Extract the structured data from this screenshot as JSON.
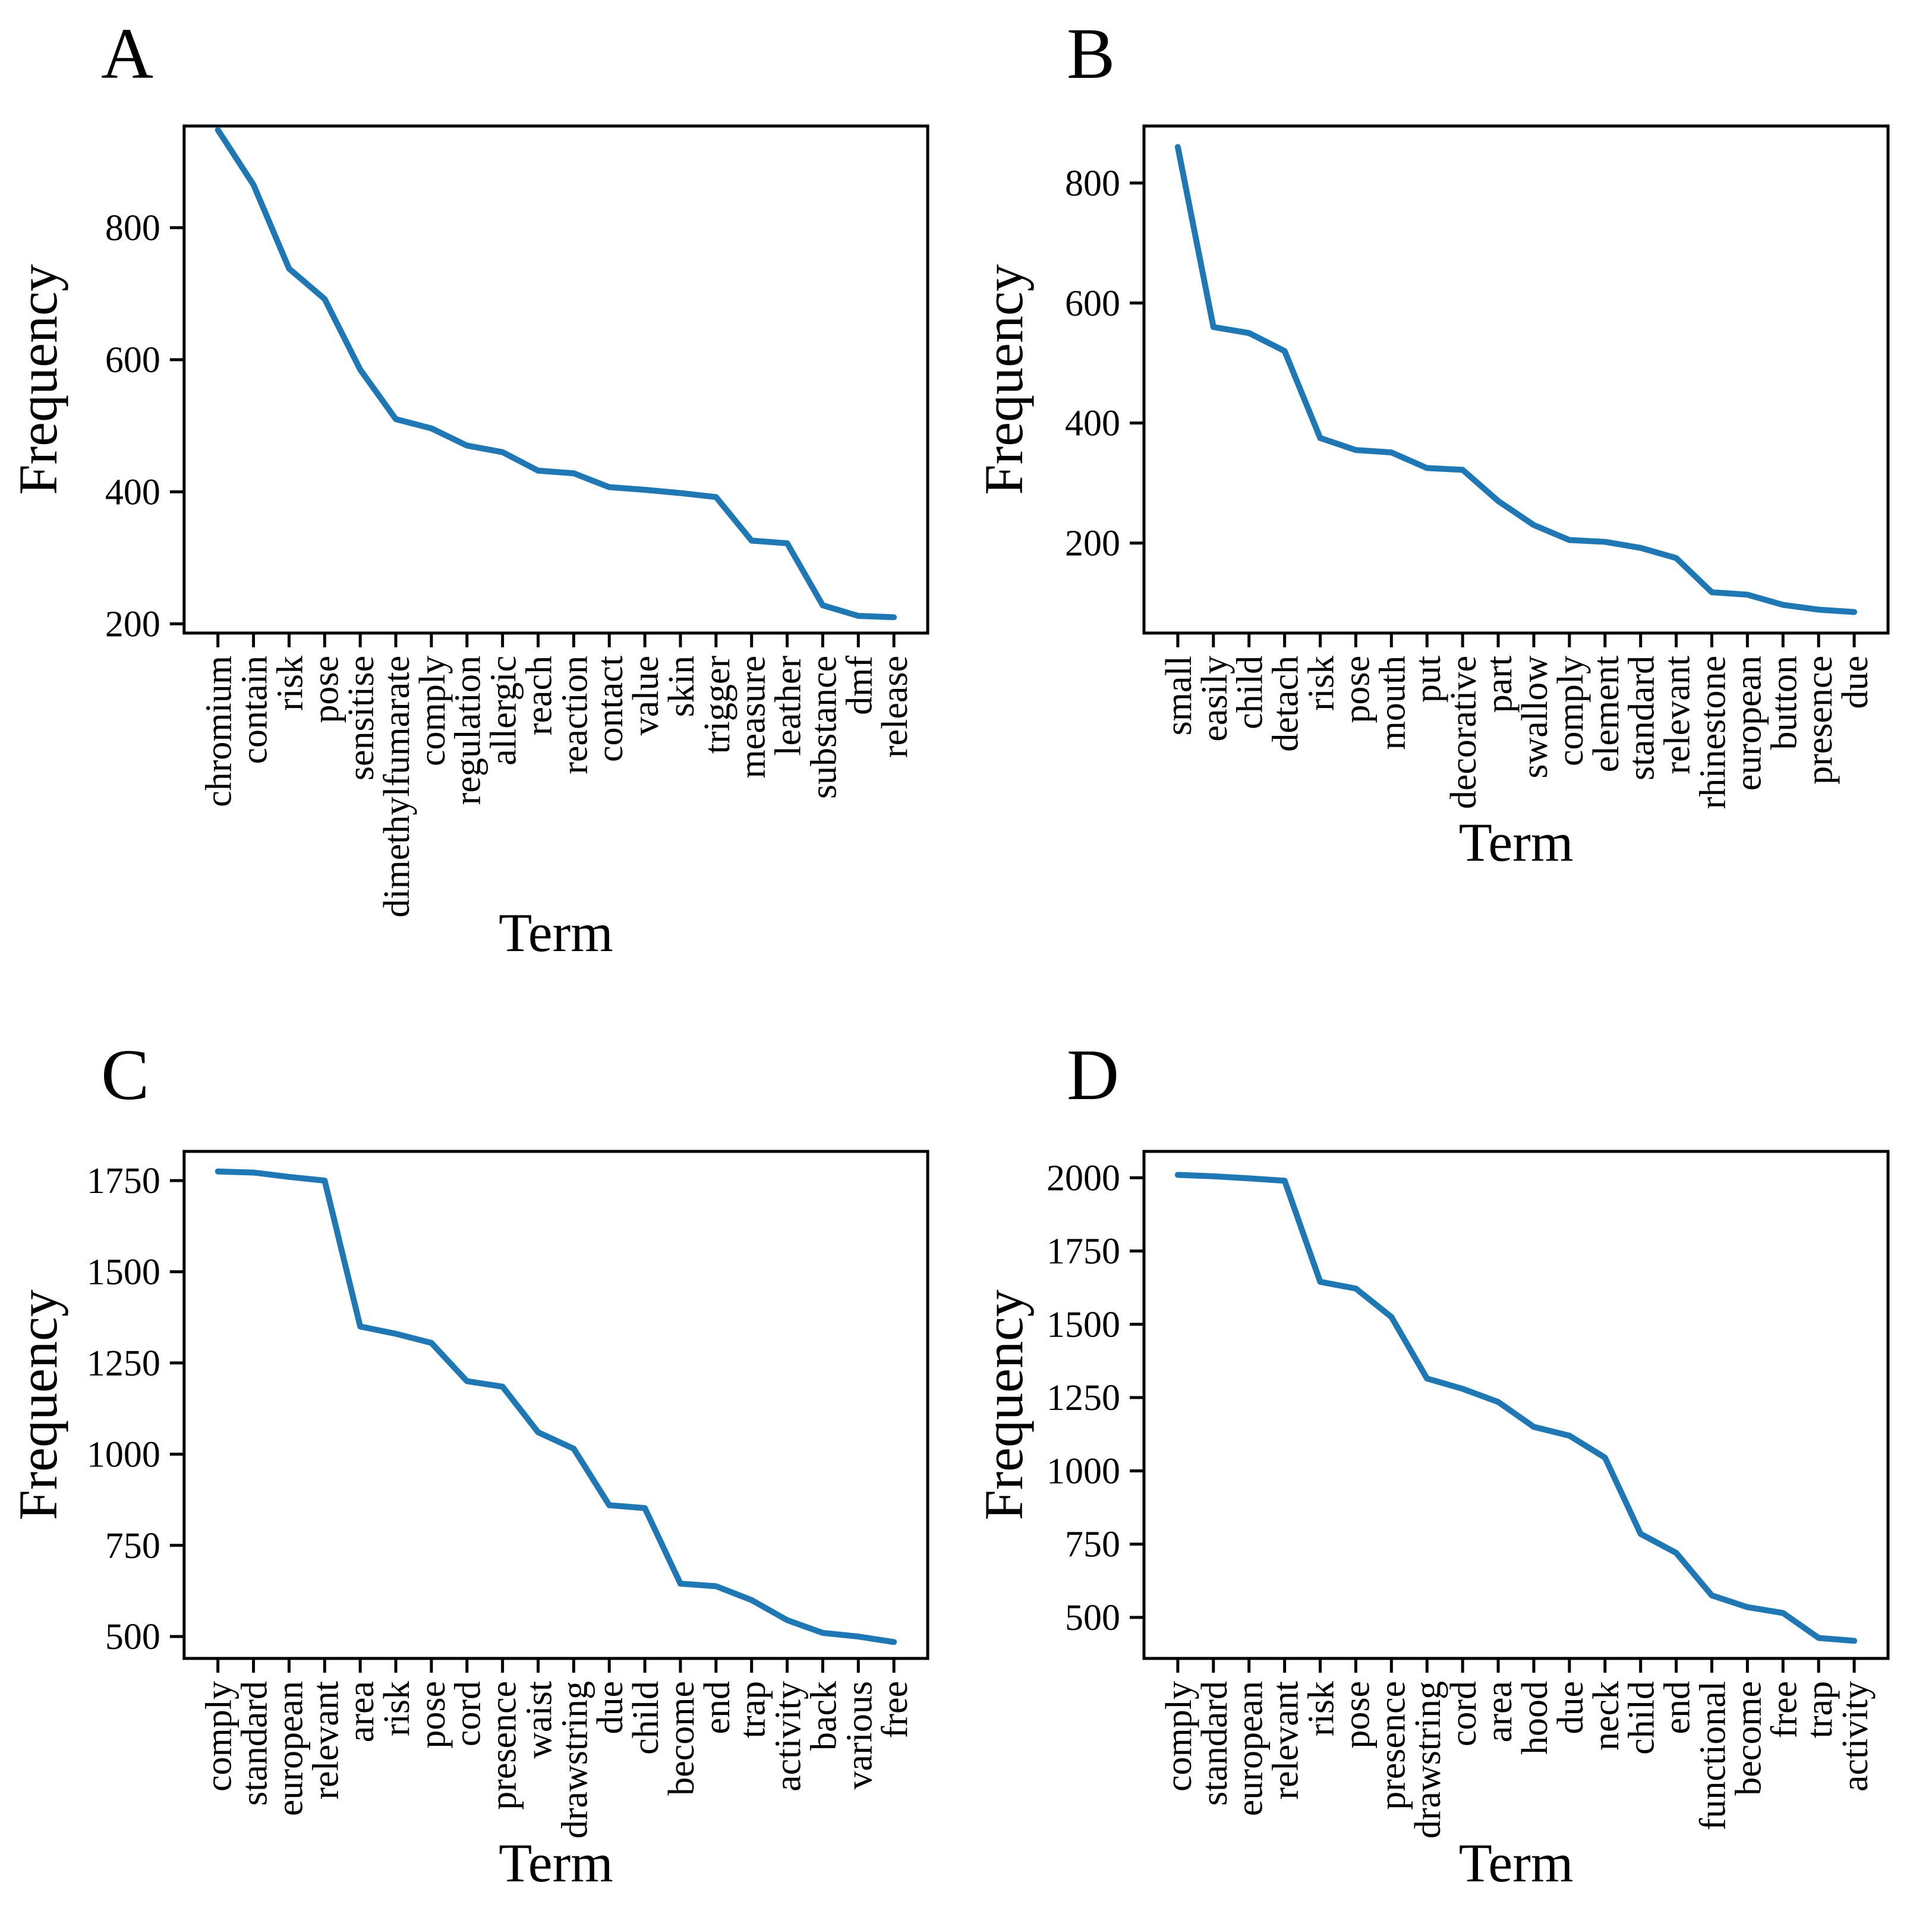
{
  "figure": {
    "background": "#ffffff",
    "axis_color": "#000000",
    "line_color": "#1f77b4"
  },
  "chart_data": [
    {
      "panel": "A",
      "title": "A",
      "type": "line",
      "xlabel": "Term",
      "ylabel": "Frequency",
      "categories": [
        "chromium",
        "contain",
        "risk",
        "pose",
        "sensitise",
        "dimethylfumarate",
        "comply",
        "regulation",
        "allergic",
        "reach",
        "reaction",
        "contact",
        "value",
        "skin",
        "trigger",
        "measure",
        "leather",
        "substance",
        "dmf",
        "release"
      ],
      "values": [
        948,
        865,
        738,
        692,
        585,
        510,
        496,
        470,
        460,
        432,
        428,
        407,
        403,
        398,
        392,
        326,
        322,
        228,
        212,
        210
      ],
      "yticks": [
        200,
        400,
        600,
        800
      ],
      "ylim": [
        186,
        954
      ],
      "grid": false,
      "legend": null
    },
    {
      "panel": "B",
      "title": "B",
      "type": "line",
      "xlabel": "Term",
      "ylabel": "Frequency",
      "categories": [
        "small",
        "easily",
        "child",
        "detach",
        "risk",
        "pose",
        "mouth",
        "put",
        "decorative",
        "part",
        "swallow",
        "comply",
        "element",
        "standard",
        "relevant",
        "rhinestone",
        "european",
        "button",
        "presence",
        "due"
      ],
      "values": [
        860,
        560,
        550,
        520,
        375,
        355,
        351,
        325,
        322,
        270,
        230,
        205,
        202,
        192,
        175,
        118,
        114,
        97,
        89,
        85
      ],
      "yticks": [
        200,
        400,
        600,
        800
      ],
      "ylim": [
        50,
        895
      ],
      "grid": false,
      "legend": null
    },
    {
      "panel": "C",
      "title": "C",
      "type": "line",
      "xlabel": "Term",
      "ylabel": "Frequency",
      "categories": [
        "comply",
        "standard",
        "european",
        "relevant",
        "area",
        "risk",
        "pose",
        "cord",
        "presence",
        "waist",
        "drawstring",
        "due",
        "child",
        "become",
        "end",
        "trap",
        "activity",
        "back",
        "various",
        "free"
      ],
      "values": [
        1775,
        1772,
        1760,
        1750,
        1350,
        1330,
        1305,
        1200,
        1185,
        1060,
        1015,
        860,
        852,
        645,
        638,
        600,
        545,
        510,
        500,
        485
      ],
      "yticks": [
        500,
        750,
        1000,
        1250,
        1500,
        1750
      ],
      "ylim": [
        440,
        1830
      ],
      "grid": false,
      "legend": null
    },
    {
      "panel": "D",
      "title": "D",
      "type": "line",
      "xlabel": "Term",
      "ylabel": "Frequency",
      "categories": [
        "comply",
        "standard",
        "european",
        "relevant",
        "risk",
        "pose",
        "presence",
        "drawstring",
        "cord",
        "area",
        "hood",
        "due",
        "neck",
        "child",
        "end",
        "functional",
        "become",
        "free",
        "trap",
        "activity"
      ],
      "values": [
        2010,
        2005,
        1998,
        1990,
        1645,
        1622,
        1525,
        1315,
        1280,
        1235,
        1150,
        1120,
        1045,
        785,
        720,
        575,
        535,
        515,
        430,
        420
      ],
      "yticks": [
        500,
        750,
        1000,
        1250,
        1500,
        1750,
        2000
      ],
      "ylim": [
        360,
        2090
      ],
      "grid": false,
      "legend": null
    }
  ]
}
